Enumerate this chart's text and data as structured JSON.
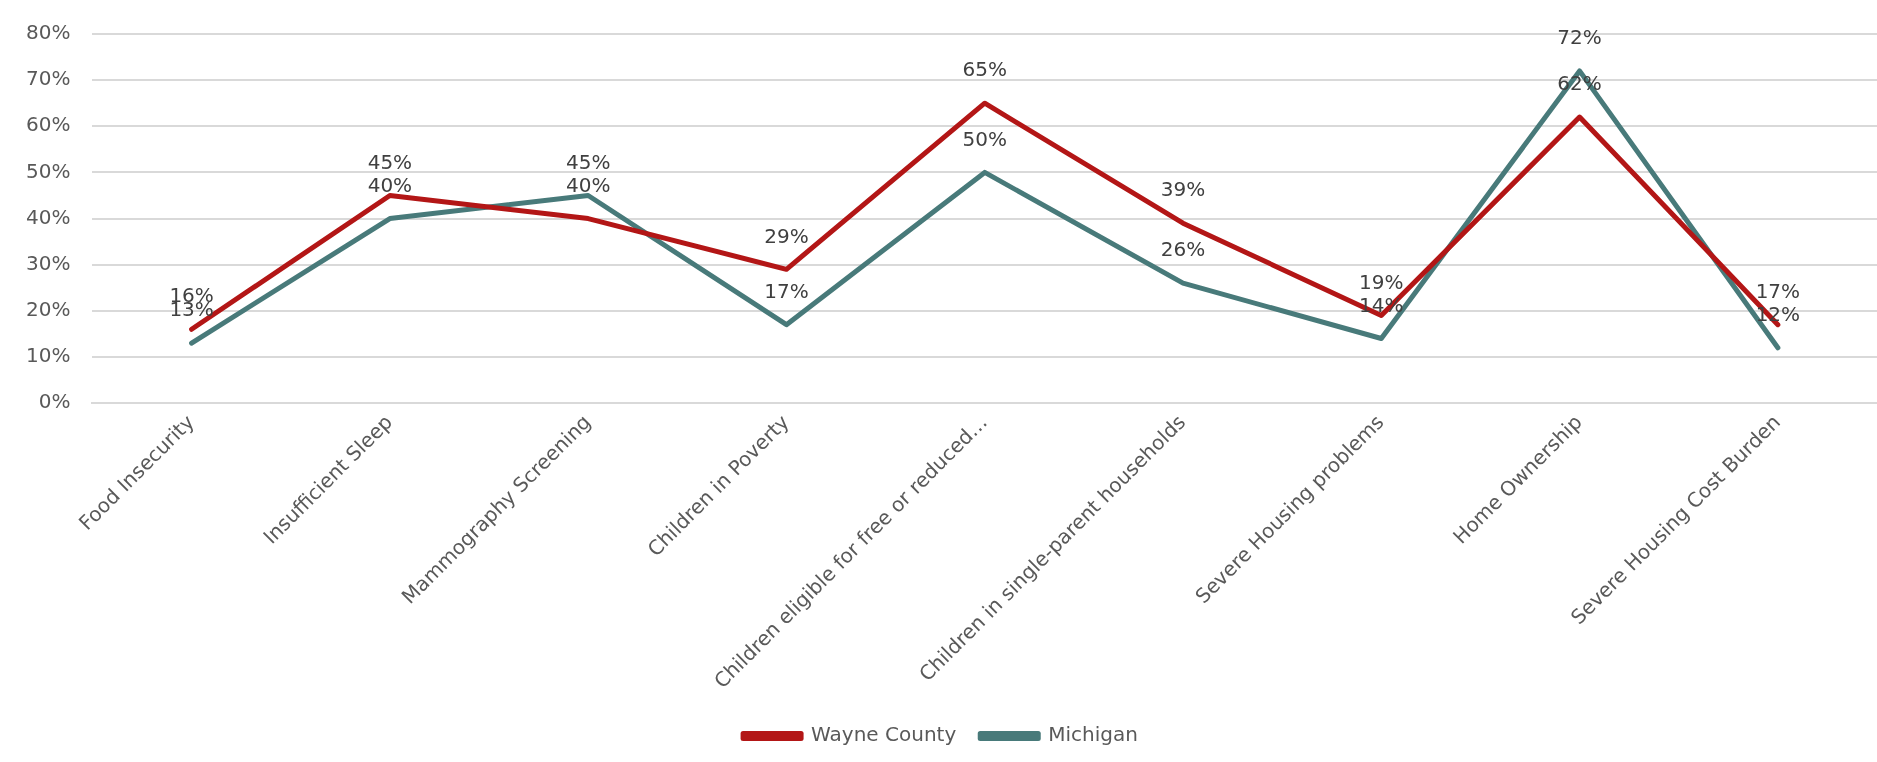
{
  "chart_data": {
    "type": "line",
    "categories": [
      "Food Insecurity",
      "Insufficient Sleep",
      "Mammography Screening",
      "Children in Poverty",
      "Children eligible for free or reduced…",
      "Children in single-parent households",
      "Severe Housing problems",
      "Home Ownership",
      "Severe Housing Cost Burden"
    ],
    "series": [
      {
        "name": "Wayne County",
        "color": "#b31616",
        "values": [
          16,
          45,
          40,
          29,
          65,
          39,
          19,
          62,
          17
        ],
        "value_labels": [
          "16%",
          "45%",
          "40%",
          "29%",
          "65%",
          "39%",
          "19%",
          "62%",
          "17%"
        ]
      },
      {
        "name": "Michigan",
        "color": "#487a7a",
        "values": [
          13,
          40,
          45,
          17,
          50,
          26,
          14,
          72,
          12
        ],
        "value_labels": [
          "13%",
          "40%",
          "45%",
          "17%",
          "50%",
          "26%",
          "14%",
          "72%",
          "12%"
        ]
      }
    ],
    "ylim": [
      0,
      80
    ],
    "yticks": [
      {
        "value": 0,
        "label": "0%"
      },
      {
        "value": 10,
        "label": "10%"
      },
      {
        "value": 20,
        "label": "20%"
      },
      {
        "value": 30,
        "label": "30%"
      },
      {
        "value": 40,
        "label": "40%"
      },
      {
        "value": 50,
        "label": "50%"
      },
      {
        "value": 60,
        "label": "60%"
      },
      {
        "value": 70,
        "label": "70%"
      },
      {
        "value": 80,
        "label": "80%"
      }
    ],
    "grid": "y",
    "legend": "bottom",
    "marker": "none",
    "line_style": "solid"
  }
}
